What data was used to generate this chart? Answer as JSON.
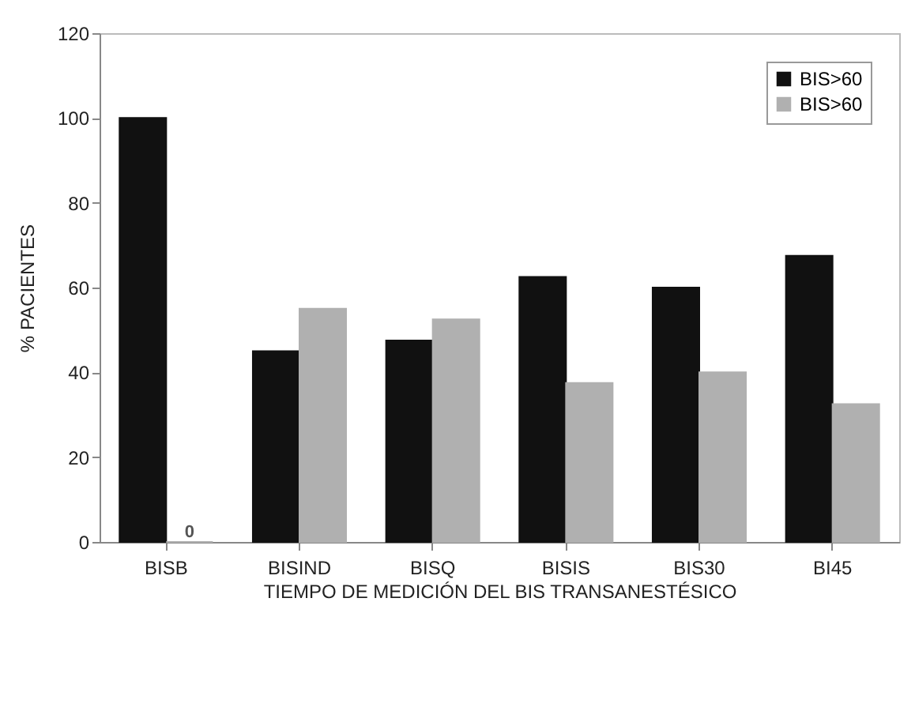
{
  "chart_data": {
    "type": "bar",
    "xlabel": "TIEMPO DE MEDICIÓN DEL BIS TRANSANESTÉSICO",
    "ylabel": "% PACIENTES",
    "categories": [
      "BISB",
      "BISIND",
      "BISQ",
      "BISIS",
      "BIS30",
      "BI45"
    ],
    "series": [
      {
        "name": "BIS>60",
        "color": "#111111",
        "values": [
          100,
          45,
          47.5,
          62.5,
          60,
          67.5
        ]
      },
      {
        "name": "BIS>60",
        "color": "#b0b0b0",
        "values": [
          0,
          55,
          52.5,
          37.5,
          40,
          32.5
        ],
        "value_labels": [
          "0",
          null,
          null,
          null,
          null,
          null
        ]
      }
    ],
    "ylim": [
      0,
      120
    ],
    "yticks": [
      0,
      20,
      40,
      60,
      80,
      100,
      120
    ],
    "grid": false,
    "legend": "top right"
  }
}
